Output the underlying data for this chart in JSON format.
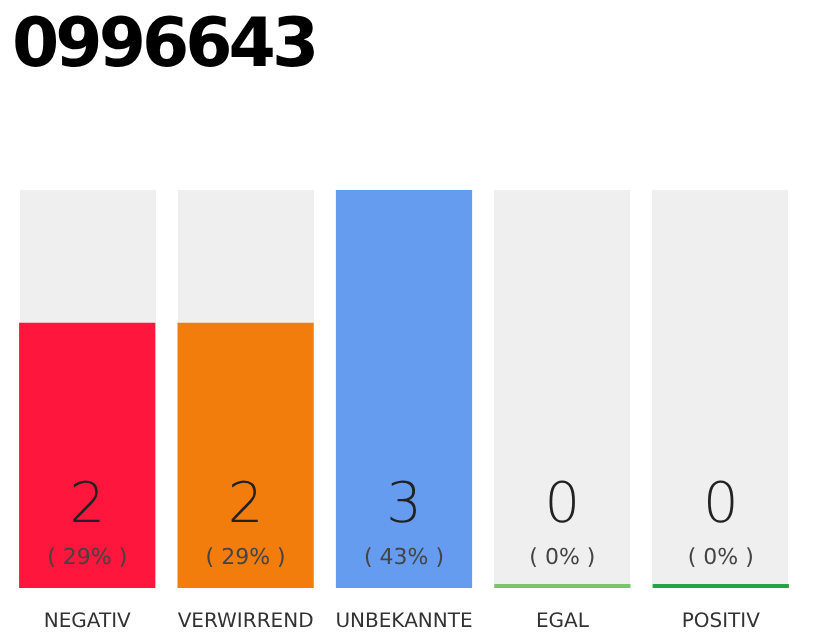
{
  "chart_data": {
    "type": "bar",
    "title": "0996643",
    "categories": [
      "NEGATIV",
      "VERWIRREND",
      "UNBEKANNTE",
      "EGAL",
      "POSITIV"
    ],
    "values": [
      2,
      2,
      3,
      0,
      0
    ],
    "colors": [
      "#ff163c",
      "#f27d0c",
      "#659cf0",
      "#7dc36a",
      "#22a447"
    ],
    "value_labels": [
      "2\n( 29% )",
      "2\n( 29% )",
      "3\n( 43% )",
      "0\n( 0% )",
      "0\n( 0% )"
    ],
    "tick_labels": "x",
    "grid": false,
    "legend": false
  }
}
